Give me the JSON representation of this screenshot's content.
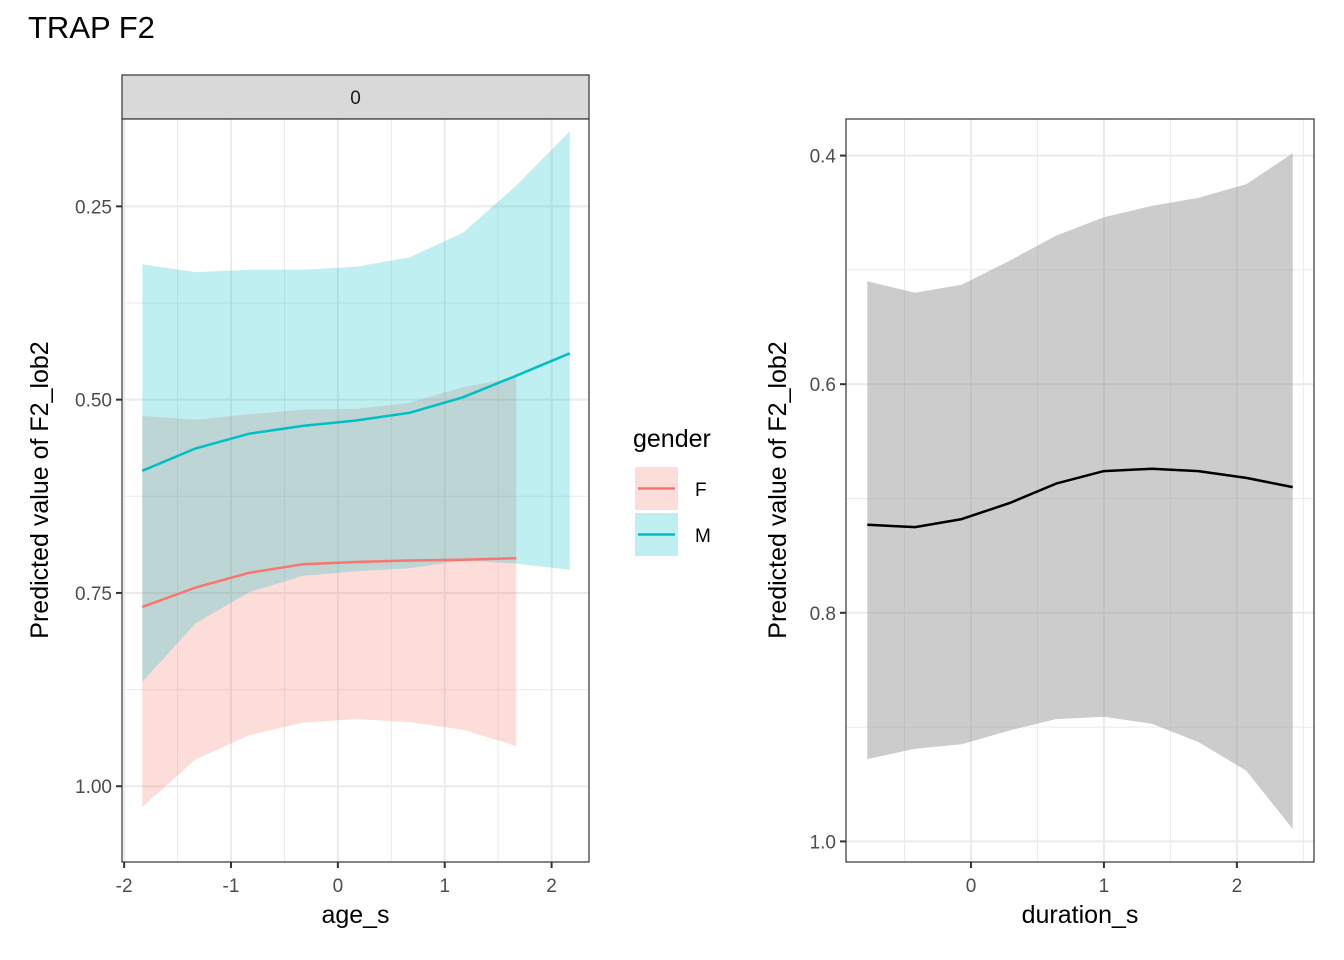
{
  "title": "TRAP F2",
  "colors": {
    "F": "#F8766D",
    "M": "#00BFC4",
    "F_fill": "#F8766D",
    "M_fill": "#00BFC4",
    "band_gray": "#999999",
    "line_black": "#000000",
    "strip_bg": "#D9D9D9",
    "grid": "#EBEBEB"
  },
  "chart_data": [
    {
      "type": "line",
      "name": "age_s panel",
      "facet_label": "0",
      "xlabel": "age_s",
      "ylabel": "Predicted value of F2_lob2",
      "y_reversed": true,
      "xlim": [
        -2.02,
        2.35
      ],
      "ylim": [
        0.137,
        1.098
      ],
      "xticks": [
        -2,
        -1,
        0,
        1,
        2
      ],
      "xtick_labels": [
        "-2",
        "-1",
        "0",
        "1",
        "2"
      ],
      "yticks": [
        0.25,
        0.5,
        0.75,
        1.0
      ],
      "ytick_labels": [
        "0.25",
        "0.50",
        "0.75",
        "1.00"
      ],
      "grid": true,
      "legend": {
        "title": "gender",
        "position": "right",
        "entries": [
          "F",
          "M"
        ]
      },
      "series": [
        {
          "name": "F",
          "x": [
            -1.83,
            -1.33,
            -0.83,
            -0.33,
            0.17,
            0.67,
            1.17,
            1.67
          ],
          "y": [
            0.768,
            0.743,
            0.724,
            0.713,
            0.71,
            0.708,
            0.707,
            0.705
          ],
          "ci_low": [
            0.521,
            0.526,
            0.519,
            0.513,
            0.512,
            0.504,
            0.484,
            0.471
          ],
          "ci_high": [
            1.027,
            0.965,
            0.934,
            0.918,
            0.913,
            0.917,
            0.927,
            0.948
          ]
        },
        {
          "name": "M",
          "x": [
            -1.83,
            -1.33,
            -0.83,
            -0.33,
            0.17,
            0.67,
            1.17,
            1.67,
            2.17
          ],
          "y": [
            0.592,
            0.563,
            0.544,
            0.534,
            0.527,
            0.517,
            0.497,
            0.469,
            0.44
          ],
          "ci_low": [
            0.325,
            0.335,
            0.332,
            0.332,
            0.328,
            0.316,
            0.284,
            0.223,
            0.153
          ],
          "ci_high": [
            0.865,
            0.789,
            0.749,
            0.728,
            0.722,
            0.718,
            0.708,
            0.712,
            0.72
          ]
        }
      ]
    },
    {
      "type": "line",
      "name": "duration_s panel",
      "xlabel": "duration_s",
      "ylabel": "Predicted value of F2_lob2",
      "y_reversed": true,
      "xlim": [
        -0.94,
        2.58
      ],
      "ylim": [
        0.368,
        1.018
      ],
      "xticks": [
        0,
        1,
        2
      ],
      "xtick_labels": [
        "0",
        "1",
        "2"
      ],
      "yticks": [
        0.4,
        0.6,
        0.8,
        1.0
      ],
      "ytick_labels": [
        "0.4",
        "0.6",
        "0.8",
        "1.0"
      ],
      "grid": true,
      "series": [
        {
          "name": "predicted",
          "x": [
            -0.78,
            -0.42,
            -0.07,
            0.29,
            0.64,
            1.0,
            1.36,
            1.71,
            2.07,
            2.42
          ],
          "y": [
            0.723,
            0.725,
            0.718,
            0.704,
            0.687,
            0.676,
            0.674,
            0.676,
            0.682,
            0.69
          ],
          "ci_low": [
            0.51,
            0.52,
            0.513,
            0.492,
            0.47,
            0.454,
            0.444,
            0.437,
            0.425,
            0.398
          ],
          "ci_high": [
            0.928,
            0.919,
            0.915,
            0.903,
            0.893,
            0.891,
            0.897,
            0.913,
            0.938,
            0.989
          ]
        }
      ]
    }
  ]
}
